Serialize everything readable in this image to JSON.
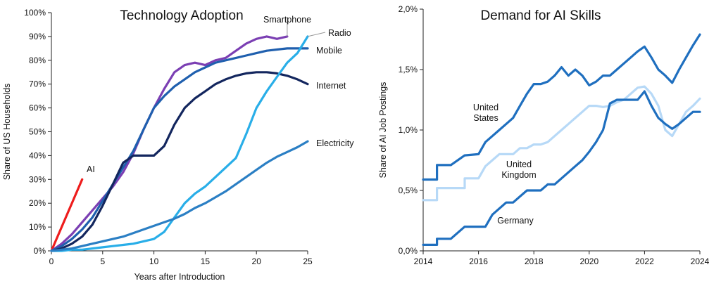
{
  "chart_data": [
    {
      "type": "line",
      "title": "Technology Adoption",
      "xlabel": "Years after Introduction",
      "ylabel": "Share of US Households",
      "xlim": [
        0,
        25
      ],
      "ylim": [
        0,
        100
      ],
      "xticks": [
        "0",
        "5",
        "10",
        "15",
        "20",
        "25"
      ],
      "yticks": [
        "0%",
        "10%",
        "20%",
        "30%",
        "40%",
        "50%",
        "60%",
        "70%",
        "80%",
        "90%",
        "100%"
      ],
      "grid": false,
      "series": [
        {
          "name": "AI",
          "color": "#ee1c1c",
          "x": [
            0,
            3
          ],
          "y": [
            0,
            30
          ]
        },
        {
          "name": "Smartphone",
          "color": "#7b3fb3",
          "x": [
            0,
            1,
            2,
            3,
            4,
            5,
            6,
            7,
            8,
            9,
            10,
            11,
            12,
            13,
            14,
            15,
            16,
            17,
            18,
            19,
            20,
            21,
            22,
            23
          ],
          "y": [
            0,
            3,
            7,
            12,
            17,
            22,
            27,
            33,
            41,
            51,
            60,
            68,
            75,
            78,
            79,
            78,
            80,
            81,
            84,
            87,
            89,
            90,
            89,
            90
          ]
        },
        {
          "name": "Mobile",
          "color": "#1f5fae",
          "x": [
            0,
            1,
            2,
            3,
            4,
            5,
            6,
            7,
            8,
            9,
            10,
            11,
            12,
            13,
            14,
            15,
            16,
            17,
            18,
            19,
            20,
            21,
            22,
            23,
            24,
            25
          ],
          "y": [
            0,
            2,
            5,
            9,
            14,
            21,
            28,
            35,
            42,
            51,
            60,
            65,
            69,
            72,
            75,
            77,
            79,
            80,
            81,
            82,
            83,
            84,
            84.5,
            85,
            85,
            85
          ]
        },
        {
          "name": "Internet",
          "color": "#13265e",
          "x": [
            0,
            1,
            2,
            3,
            4,
            5,
            6,
            7,
            8,
            9,
            10,
            11,
            12,
            13,
            14,
            15,
            16,
            17,
            18,
            19,
            20,
            21,
            22,
            23,
            24,
            25
          ],
          "y": [
            0,
            1,
            3,
            6,
            11,
            19,
            28,
            37,
            40,
            40,
            40,
            44,
            53,
            60,
            64,
            67,
            70,
            72,
            73.5,
            74.5,
            75,
            75,
            74.5,
            73.5,
            72,
            70
          ]
        },
        {
          "name": "Radio",
          "color": "#29aee8",
          "x": [
            0,
            1,
            2,
            3,
            4,
            5,
            6,
            7,
            8,
            9,
            10,
            11,
            12,
            13,
            14,
            15,
            16,
            17,
            18,
            19,
            20,
            21,
            22,
            23,
            24,
            25
          ],
          "y": [
            0,
            0,
            0.5,
            0.5,
            1,
            1.5,
            2,
            2.5,
            3,
            4,
            5,
            8,
            14,
            20,
            24,
            27,
            31,
            35,
            39,
            49,
            60,
            67,
            73,
            79,
            83,
            90
          ]
        },
        {
          "name": "Electricity",
          "color": "#2b7fc4",
          "x": [
            0,
            1,
            2,
            3,
            4,
            5,
            6,
            7,
            8,
            9,
            10,
            11,
            12,
            13,
            14,
            15,
            16,
            17,
            18,
            19,
            20,
            21,
            22,
            23,
            24,
            25
          ],
          "y": [
            0,
            0.5,
            1,
            2,
            3,
            4,
            5,
            6,
            7.5,
            9,
            10.5,
            12,
            13.5,
            15.5,
            18,
            20,
            22.5,
            25,
            28,
            31,
            34,
            37,
            39.5,
            41.5,
            43.5,
            46
          ]
        }
      ]
    },
    {
      "type": "line",
      "title": "Demand for AI Skills",
      "xlabel": "",
      "ylabel": "Share of AI Job Postings",
      "xlim": [
        2014,
        2024
      ],
      "ylim": [
        0,
        2.0
      ],
      "xticks": [
        "2014",
        "2016",
        "2018",
        "2020",
        "2022",
        "2024"
      ],
      "yticks": [
        "0,0%",
        "0,5%",
        "1,0%",
        "1,5%",
        "2,0%"
      ],
      "grid": false,
      "series": [
        {
          "name": "United States",
          "label_lines": [
            "United",
            "States"
          ],
          "color": "#1f6fbf",
          "x": [
            2014,
            2014.5,
            2014.5,
            2015,
            2015.5,
            2015.5,
            2016,
            2016.25,
            2016.5,
            2016.75,
            2017,
            2017.25,
            2017.5,
            2017.75,
            2018,
            2018.25,
            2018.5,
            2018.75,
            2019,
            2019.25,
            2019.5,
            2019.75,
            2020,
            2020.25,
            2020.5,
            2020.75,
            2021,
            2021.25,
            2021.5,
            2021.75,
            2022,
            2022.25,
            2022.5,
            2022.75,
            2023,
            2023.25,
            2023.5,
            2023.75,
            2024
          ],
          "y": [
            0.59,
            0.59,
            0.71,
            0.71,
            0.79,
            0.79,
            0.8,
            0.9,
            0.95,
            1.0,
            1.05,
            1.1,
            1.2,
            1.3,
            1.38,
            1.38,
            1.4,
            1.45,
            1.52,
            1.45,
            1.5,
            1.45,
            1.37,
            1.4,
            1.45,
            1.45,
            1.5,
            1.55,
            1.6,
            1.65,
            1.69,
            1.6,
            1.5,
            1.45,
            1.39,
            1.5,
            1.6,
            1.7,
            1.79
          ]
        },
        {
          "name": "United Kingdom",
          "label_lines": [
            "United",
            "Kingdom"
          ],
          "color": "#b7d9f7",
          "x": [
            2014,
            2014.5,
            2014.5,
            2015,
            2015.5,
            2015.5,
            2016,
            2016.25,
            2016.5,
            2016.75,
            2017,
            2017.25,
            2017.5,
            2017.75,
            2018,
            2018.25,
            2018.5,
            2018.75,
            2019,
            2019.25,
            2019.5,
            2019.75,
            2020,
            2020.25,
            2020.5,
            2020.75,
            2021,
            2021.25,
            2021.5,
            2021.75,
            2022,
            2022.25,
            2022.5,
            2022.75,
            2023,
            2023.25,
            2023.5,
            2023.75,
            2024
          ],
          "y": [
            0.42,
            0.42,
            0.52,
            0.52,
            0.52,
            0.6,
            0.6,
            0.7,
            0.75,
            0.8,
            0.8,
            0.8,
            0.85,
            0.85,
            0.88,
            0.88,
            0.9,
            0.95,
            1.0,
            1.05,
            1.1,
            1.15,
            1.2,
            1.2,
            1.19,
            1.2,
            1.23,
            1.25,
            1.3,
            1.35,
            1.36,
            1.3,
            1.2,
            1.0,
            0.95,
            1.05,
            1.15,
            1.2,
            1.26
          ]
        },
        {
          "name": "Germany",
          "label_lines": [
            "Germany"
          ],
          "color": "#1f6fbf",
          "x": [
            2014,
            2014.5,
            2014.5,
            2015,
            2015.5,
            2015.5,
            2016,
            2016.25,
            2016.5,
            2016.75,
            2017,
            2017.25,
            2017.5,
            2017.75,
            2018,
            2018.25,
            2018.5,
            2018.75,
            2019,
            2019.25,
            2019.5,
            2019.75,
            2020,
            2020.25,
            2020.5,
            2020.75,
            2021,
            2021.25,
            2021.5,
            2021.75,
            2022,
            2022.25,
            2022.5,
            2022.75,
            2023,
            2023.25,
            2023.5,
            2023.75,
            2024
          ],
          "y": [
            0.05,
            0.05,
            0.1,
            0.1,
            0.2,
            0.2,
            0.2,
            0.2,
            0.3,
            0.35,
            0.4,
            0.4,
            0.45,
            0.5,
            0.5,
            0.5,
            0.55,
            0.55,
            0.6,
            0.65,
            0.7,
            0.75,
            0.82,
            0.9,
            1.0,
            1.22,
            1.25,
            1.25,
            1.25,
            1.25,
            1.32,
            1.2,
            1.1,
            1.05,
            1.01,
            1.05,
            1.1,
            1.15,
            1.15
          ]
        }
      ]
    }
  ]
}
